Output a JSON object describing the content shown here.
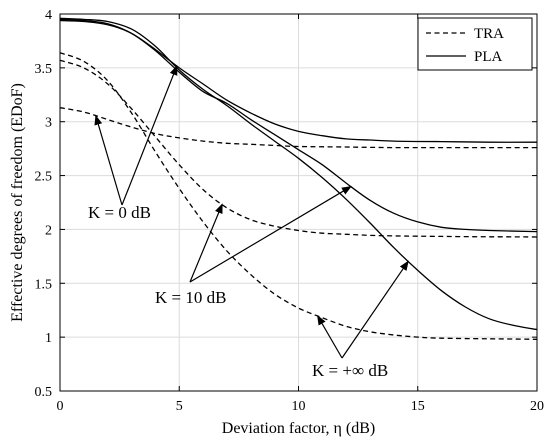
{
  "chart_data": {
    "type": "line",
    "title": "",
    "xlabel": "Deviation factor, η (dB)",
    "ylabel": "Effective degrees of freedom (EDoF)",
    "xlim": [
      0,
      20
    ],
    "ylim": [
      0.5,
      4
    ],
    "xticks": [
      0,
      5,
      10,
      15,
      20
    ],
    "yticks": [
      0.5,
      1,
      1.5,
      2,
      2.5,
      3,
      3.5,
      4
    ],
    "xtick_labels": [
      "0",
      "5",
      "10",
      "15",
      "20"
    ],
    "ytick_labels": [
      "0.5",
      "1",
      "1.5",
      "2",
      "2.5",
      "3",
      "3.5",
      "4"
    ],
    "grid": true,
    "legend_position": "top-right",
    "legend": [
      {
        "label": "TRA",
        "style": "dashed"
      },
      {
        "label": "PLA",
        "style": "solid"
      }
    ],
    "series": [
      {
        "legend": "TRA",
        "group": "K = 0 dB",
        "style": "dashed",
        "x": [
          0,
          1,
          2,
          3,
          4,
          5,
          6,
          7,
          8,
          9,
          10,
          12,
          14,
          16,
          18,
          20
        ],
        "y": [
          3.13,
          3.09,
          3.02,
          2.95,
          2.89,
          2.85,
          2.82,
          2.8,
          2.79,
          2.78,
          2.77,
          2.765,
          2.76,
          2.76,
          2.76,
          2.76
        ]
      },
      {
        "legend": "TRA",
        "group": "K = 10 dB",
        "style": "dashed",
        "x": [
          0,
          1,
          2,
          3,
          4,
          5,
          6,
          7,
          8,
          9,
          10,
          11,
          12,
          13,
          14,
          16,
          18,
          20
        ],
        "y": [
          3.57,
          3.5,
          3.35,
          3.12,
          2.86,
          2.6,
          2.37,
          2.2,
          2.09,
          2.03,
          1.99,
          1.965,
          1.955,
          1.945,
          1.94,
          1.935,
          1.932,
          1.93
        ]
      },
      {
        "legend": "TRA",
        "group": "K = +∞ dB",
        "style": "dashed",
        "x": [
          0,
          1,
          2,
          3,
          4,
          5,
          6,
          7,
          8,
          9,
          10,
          11,
          12,
          13,
          14,
          15,
          16,
          18,
          20
        ],
        "y": [
          3.64,
          3.56,
          3.38,
          3.08,
          2.72,
          2.38,
          2.07,
          1.8,
          1.58,
          1.4,
          1.27,
          1.18,
          1.1,
          1.05,
          1.02,
          1.0,
          0.99,
          0.985,
          0.98
        ]
      },
      {
        "legend": "PLA",
        "group": "K = 0 dB",
        "style": "solid",
        "x": [
          0,
          1,
          2,
          3,
          4,
          5,
          6,
          7,
          8,
          9,
          10,
          11,
          12,
          13,
          14,
          16,
          18,
          20
        ],
        "y": [
          3.94,
          3.93,
          3.9,
          3.82,
          3.67,
          3.5,
          3.35,
          3.2,
          3.08,
          2.98,
          2.91,
          2.87,
          2.84,
          2.83,
          2.82,
          2.815,
          2.81,
          2.81
        ]
      },
      {
        "legend": "PLA",
        "group": "K = 10 dB",
        "style": "solid",
        "x": [
          0,
          1,
          2,
          3,
          4,
          5,
          6,
          7,
          8,
          9,
          10,
          11,
          12,
          13,
          14,
          15,
          16,
          17,
          18,
          20
        ],
        "y": [
          3.95,
          3.94,
          3.91,
          3.82,
          3.66,
          3.46,
          3.28,
          3.17,
          3.02,
          2.88,
          2.74,
          2.6,
          2.43,
          2.27,
          2.15,
          2.07,
          2.02,
          2.0,
          1.99,
          1.98
        ]
      },
      {
        "legend": "PLA",
        "group": "K = +∞ dB",
        "style": "solid",
        "x": [
          0,
          1,
          2,
          3,
          4,
          5,
          6,
          7,
          8,
          9,
          10,
          11,
          12,
          13,
          14,
          15,
          16,
          17,
          18,
          19,
          20
        ],
        "y": [
          3.96,
          3.95,
          3.93,
          3.86,
          3.7,
          3.48,
          3.3,
          3.15,
          2.98,
          2.82,
          2.66,
          2.48,
          2.28,
          2.06,
          1.83,
          1.62,
          1.43,
          1.28,
          1.17,
          1.11,
          1.07
        ]
      }
    ],
    "annotations": [
      {
        "text": "K = 0 dB",
        "arrows_to_x": [
          1.5,
          4.9
        ]
      },
      {
        "text": "K = 10 dB",
        "arrows_to_x": [
          6.8,
          12.2
        ]
      },
      {
        "text": "K = +∞ dB",
        "arrows_to_x": [
          10.8,
          14.6
        ]
      }
    ]
  }
}
